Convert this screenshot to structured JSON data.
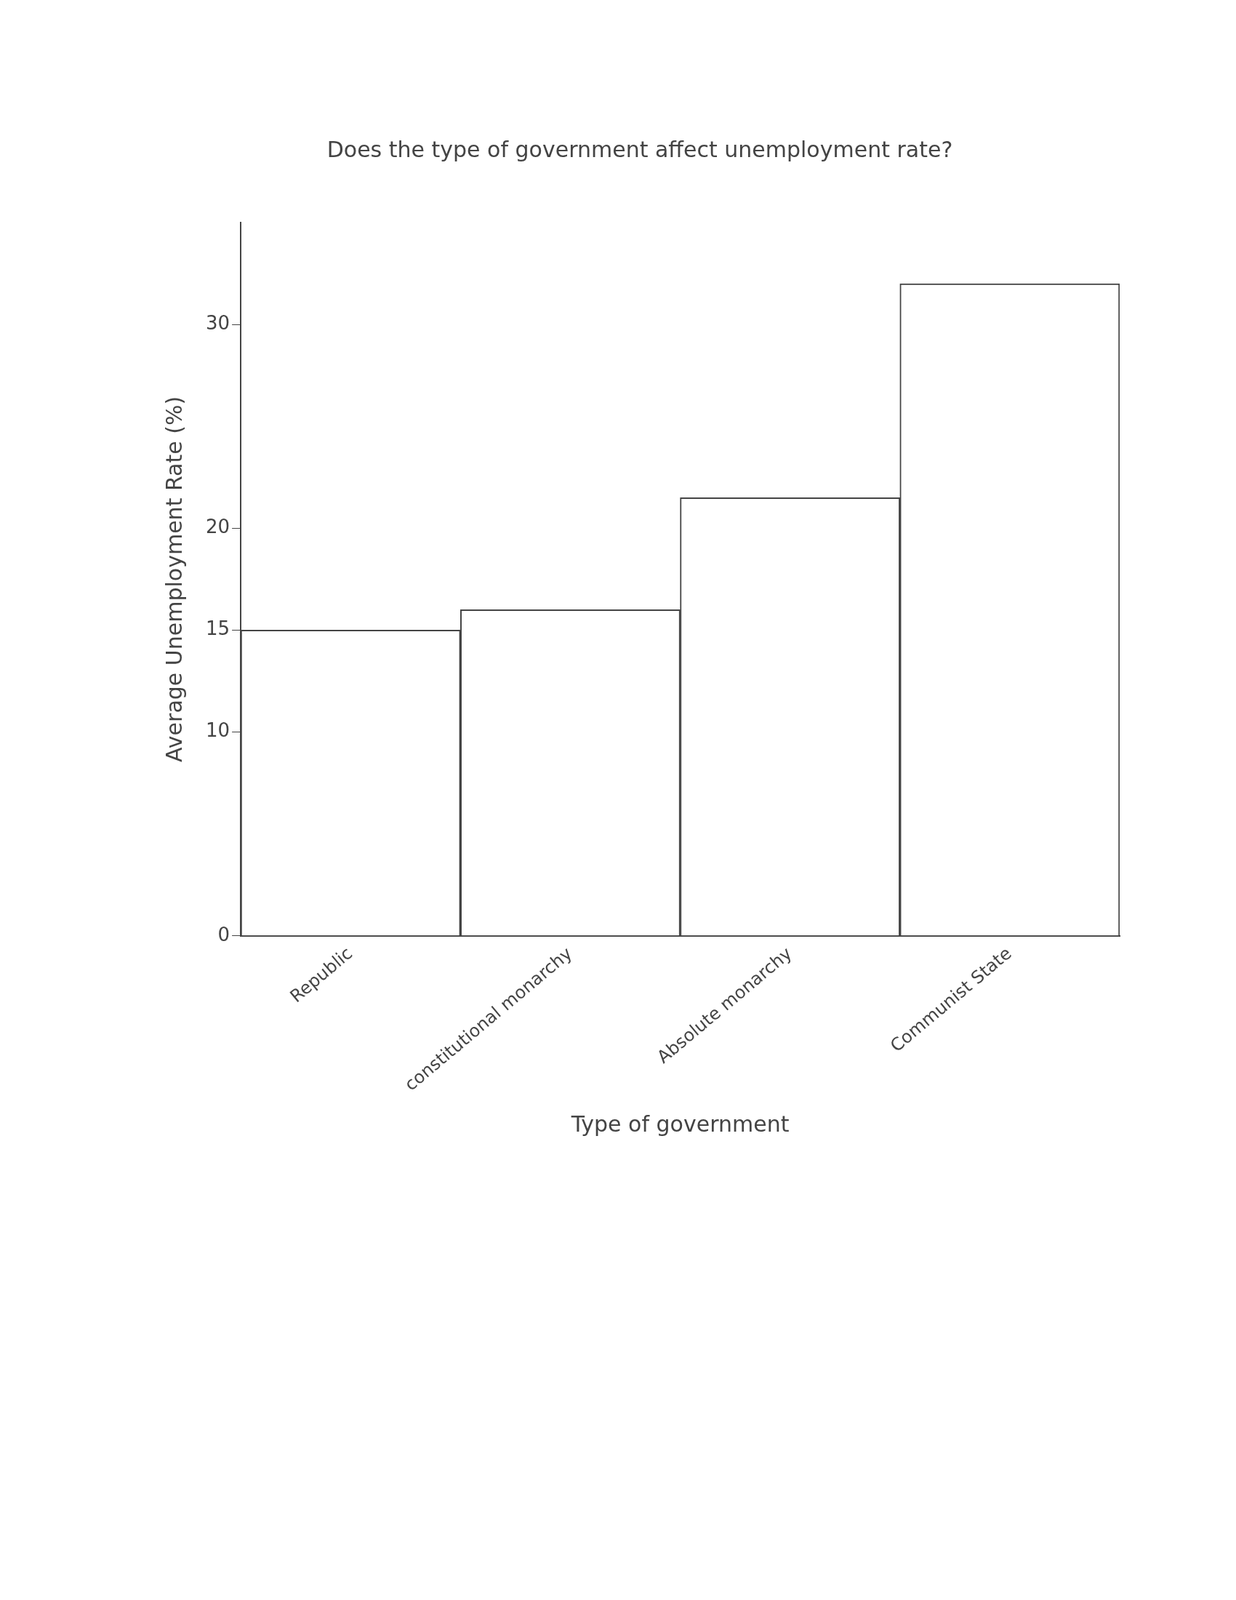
{
  "chart_data": {
    "type": "bar",
    "title": "Does the type of government affect unemployment rate?",
    "x_label": "Type of government",
    "y_label": "Average Unemployment Rate (%)",
    "categories": [
      "Republic",
      "constitutional monarchy",
      "Absolute monarchy",
      "Communist State"
    ],
    "values": [
      15,
      16,
      21.5,
      32
    ],
    "color": "#ffffff",
    "ylim": [
      0,
      35
    ],
    "yticks": [
      0,
      10,
      15,
      20,
      30
    ],
    "grid": false
  }
}
